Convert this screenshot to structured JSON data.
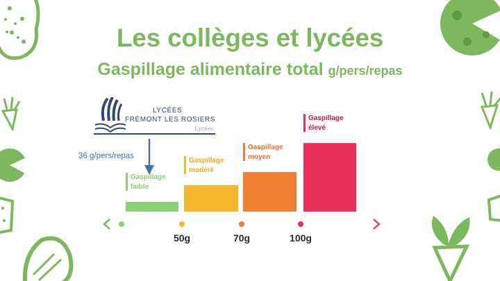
{
  "slide": {
    "title": "Les collèges et lycées",
    "subtitle": "Gaspillage alimentaire total",
    "subtitle_unit": "g/pers/repas"
  },
  "logo": {
    "name_line1": "LYCÉES",
    "name_line2": "FRÉMONT LES ROSIERS",
    "tagline": "Lycées"
  },
  "marker": {
    "label": "36 g/pers/repas",
    "value": 36
  },
  "colors": {
    "title_green": "#7db85e",
    "axis_pink": "#e0457b"
  },
  "chart_data": {
    "type": "bar",
    "categories": [
      {
        "line1": "Gaspillage",
        "line2": "faible"
      },
      {
        "line1": "Gaspillage",
        "line2": "modéré"
      },
      {
        "line1": "Gaspillage",
        "line2": "moyen"
      },
      {
        "line1": "Gaspillage",
        "line2": "élevé"
      }
    ],
    "values": [
      1,
      2,
      3,
      5.2
    ],
    "colors": [
      "#8fcf73",
      "#f6b72e",
      "#ee7e32",
      "#e8305a"
    ],
    "ticks": [
      {
        "value": 0,
        "label": ""
      },
      {
        "value": 50,
        "label": "50g"
      },
      {
        "value": 70,
        "label": "70g"
      },
      {
        "value": 100,
        "label": "100g"
      }
    ],
    "tick_colors": [
      "#8fcf73",
      "#f6b72e",
      "#ee7e32",
      "#e8305a"
    ],
    "title": "Gaspillage alimentaire total",
    "xlabel": "",
    "ylabel": "",
    "grid": false,
    "legend": "none"
  }
}
